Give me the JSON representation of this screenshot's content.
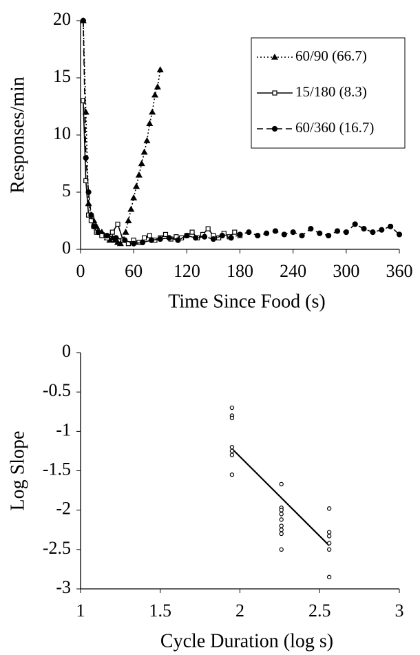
{
  "chart_data": [
    {
      "type": "line",
      "xlabel": "Time Since Food (s)",
      "ylabel": "Responses/min",
      "xlim": [
        0,
        360
      ],
      "xticks": [
        0,
        60,
        120,
        180,
        240,
        300,
        360
      ],
      "ylim": [
        0,
        20
      ],
      "yticks": [
        0,
        5,
        10,
        15,
        20
      ],
      "grid": false,
      "legend": "upper right",
      "series": [
        {
          "name": "60/90 (66.7)",
          "color": "#000000",
          "dash": "dotted",
          "marker": "triangle",
          "x": [
            3,
            6,
            9,
            12,
            15,
            18,
            21,
            24,
            27,
            30,
            33,
            36,
            39,
            42,
            45,
            48,
            51,
            54,
            57,
            60,
            63,
            66,
            69,
            72,
            75,
            78,
            81,
            84,
            87,
            90
          ],
          "values": [
            20,
            12,
            4,
            3,
            2.5,
            2,
            1.5,
            1.5,
            1.2,
            1,
            0.8,
            1,
            0.8,
            0.6,
            0.5,
            0.8,
            1.5,
            2.5,
            3.5,
            4.5,
            5.5,
            6.5,
            7.5,
            8.5,
            9.5,
            11,
            12,
            13.5,
            14.2,
            15.7
          ]
        },
        {
          "name": "15/180 (8.3)",
          "color": "#000000",
          "dash": "solid",
          "marker": "square",
          "x": [
            3,
            6,
            9,
            12,
            15,
            18,
            24,
            30,
            36,
            42,
            48,
            54,
            60,
            66,
            72,
            78,
            84,
            90,
            96,
            102,
            108,
            114,
            120,
            126,
            132,
            138,
            144,
            150,
            156,
            162,
            168,
            174,
            180
          ],
          "values": [
            13,
            6,
            3,
            2.5,
            2,
            1.5,
            1.2,
            1,
            1.5,
            2.2,
            0.8,
            0.5,
            0.8,
            0.6,
            1,
            1.2,
            0.8,
            1,
            1.3,
            0.9,
            1.1,
            1,
            1.2,
            1.5,
            1,
            1.3,
            1.8,
            1.2,
            1,
            1.4,
            1.1,
            1.5,
            1.2
          ]
        },
        {
          "name": "60/360 (16.7)",
          "color": "#000000",
          "dash": "dashed",
          "marker": "circle",
          "x": [
            3,
            6,
            9,
            12,
            15,
            20,
            30,
            40,
            50,
            60,
            70,
            80,
            90,
            100,
            110,
            120,
            130,
            140,
            150,
            160,
            170,
            180,
            190,
            200,
            210,
            220,
            230,
            240,
            250,
            260,
            270,
            280,
            290,
            300,
            310,
            320,
            330,
            340,
            350,
            360
          ],
          "values": [
            20,
            8,
            5,
            3,
            2,
            1.5,
            1.2,
            1,
            0.8,
            0.5,
            0.6,
            0.8,
            0.9,
            1,
            0.8,
            1.2,
            1,
            1.1,
            0.9,
            1.2,
            1,
            1.3,
            1.5,
            1.2,
            1.4,
            1.6,
            1.3,
            1.5,
            1.2,
            1.8,
            1.4,
            1.2,
            1.6,
            1.5,
            2.2,
            1.8,
            1.5,
            1.7,
            2,
            1.3
          ]
        }
      ]
    },
    {
      "type": "scatter",
      "xlabel": "Cycle Duration (log s)",
      "ylabel": "Log Slope",
      "xlim": [
        1,
        3
      ],
      "xticks": [
        1,
        1.5,
        2,
        2.5,
        3
      ],
      "ylim": [
        -3,
        0
      ],
      "yticks": [
        0,
        -0.5,
        -1,
        -1.5,
        -2,
        -2.5,
        -3
      ],
      "grid": false,
      "color": "#000000",
      "x": [
        1.95,
        1.95,
        1.95,
        1.95,
        1.95,
        1.95,
        1.95,
        2.26,
        2.26,
        2.26,
        2.26,
        2.26,
        2.26,
        2.26,
        2.26,
        2.26,
        2.56,
        2.56,
        2.56,
        2.56,
        2.56,
        2.56
      ],
      "values": [
        -0.7,
        -0.8,
        -0.83,
        -1.2,
        -1.25,
        -1.3,
        -1.55,
        -1.67,
        -1.97,
        -2,
        -2.05,
        -2.12,
        -2.2,
        -2.25,
        -2.3,
        -2.5,
        -1.98,
        -2.28,
        -2.33,
        -2.42,
        -2.5,
        -2.85
      ],
      "fit": {
        "x": [
          1.95,
          2.56
        ],
        "values": [
          -1.22,
          -2.45
        ]
      }
    }
  ]
}
